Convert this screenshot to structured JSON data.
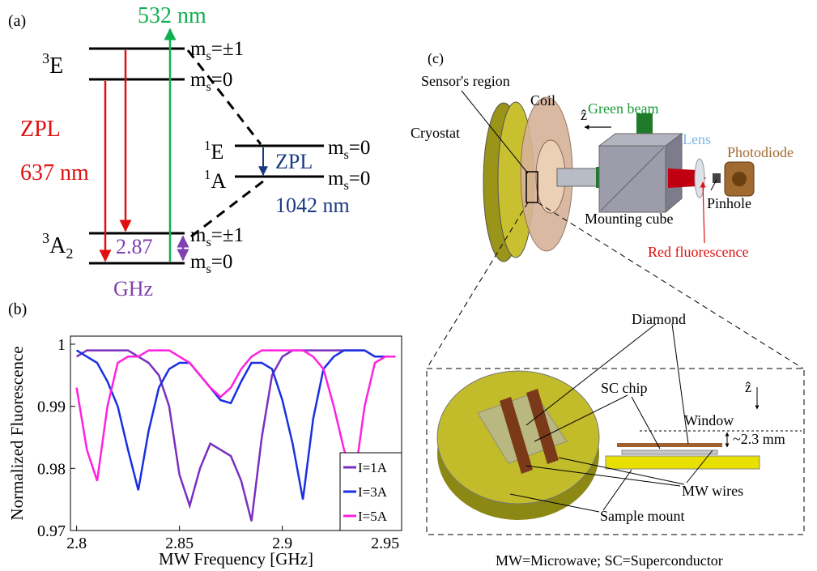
{
  "panel_a": {
    "label": "(a)",
    "pump": "532 nm",
    "zpl_left": "ZPL",
    "zpl_left_wl": "637 nm",
    "zpl_right": "ZPL",
    "zpl_right_wl": "1042 nm",
    "splitting": "2.87",
    "splitting_unit": "GHz",
    "states": {
      "e3": {
        "sup": "3",
        "name": "E"
      },
      "e1": {
        "sup": "1",
        "name": "E"
      },
      "a1": {
        "sup": "1",
        "name": "A"
      },
      "a3": {
        "sup": "3",
        "name": "A",
        "sub": "2"
      }
    },
    "sublevel": {
      "m": "m",
      "s": "s",
      "pm1": "=±1",
      "zero": "=0"
    }
  },
  "chart_data": {
    "type": "line",
    "panel_label": "(b)",
    "xlabel": "MW Frequency [GHz]",
    "ylabel": "Normalized Fluorescence",
    "x": [
      2.8,
      2.805,
      2.81,
      2.815,
      2.82,
      2.825,
      2.83,
      2.835,
      2.84,
      2.845,
      2.85,
      2.855,
      2.86,
      2.865,
      2.87,
      2.875,
      2.88,
      2.885,
      2.89,
      2.895,
      2.9,
      2.905,
      2.91,
      2.915,
      2.92,
      2.925,
      2.93,
      2.935,
      2.94,
      2.945,
      2.95,
      2.955
    ],
    "series": [
      {
        "name": "I=1A",
        "color": "#7a2fc0",
        "values": [
          0.998,
          0.999,
          0.999,
          0.999,
          0.999,
          0.999,
          0.998,
          0.997,
          0.995,
          0.99,
          0.979,
          0.974,
          0.98,
          0.984,
          0.983,
          0.982,
          0.978,
          0.9715,
          0.985,
          0.995,
          0.998,
          0.999,
          0.999,
          0.999,
          0.999,
          0.999,
          0.999,
          0.999,
          0.999,
          0.998,
          0.998,
          0.998
        ]
      },
      {
        "name": "I=3A",
        "color": "#1a2fe0",
        "values": [
          0.999,
          0.998,
          0.997,
          0.994,
          0.99,
          0.983,
          0.9765,
          0.986,
          0.993,
          0.996,
          0.997,
          0.997,
          0.995,
          0.993,
          0.991,
          0.9905,
          0.994,
          0.997,
          0.997,
          0.996,
          0.991,
          0.984,
          0.975,
          0.988,
          0.996,
          0.998,
          0.999,
          0.999,
          0.999,
          0.998,
          0.998,
          0.998
        ]
      },
      {
        "name": "I=5A",
        "color": "#ff20e0",
        "values": [
          0.993,
          0.983,
          0.978,
          0.99,
          0.997,
          0.998,
          0.998,
          0.999,
          0.999,
          0.999,
          0.998,
          0.997,
          0.995,
          0.993,
          0.9915,
          0.993,
          0.996,
          0.998,
          0.999,
          0.999,
          0.999,
          0.999,
          0.999,
          0.998,
          0.996,
          0.99,
          0.983,
          0.978,
          0.99,
          0.997,
          0.998,
          0.998
        ]
      }
    ],
    "xlim": [
      2.797,
      2.958
    ],
    "ylim": [
      0.97,
      1.0013
    ],
    "xticks": [
      2.8,
      2.85,
      2.9,
      2.95
    ],
    "yticks": [
      0.97,
      0.98,
      0.99,
      1
    ],
    "legend": "lower right"
  },
  "panel_c": {
    "label": "(c)",
    "sensor": "Sensor's region",
    "coil": "Coil",
    "green_beam": "Green beam",
    "zhat": "ẑ",
    "cryostat": "Cryostat",
    "lens": "Lens",
    "photodiode": "Photodiode",
    "pinhole": "Pinhole",
    "cube": "Mounting cube",
    "red": "Red fluorescence",
    "diamond": "Diamond",
    "chip": "SC chip",
    "window": "Window",
    "gap": "~2.3 mm",
    "wires": "MW wires",
    "mount": "Sample mount",
    "footnote": "MW=Microwave; SC=Superconductor"
  }
}
